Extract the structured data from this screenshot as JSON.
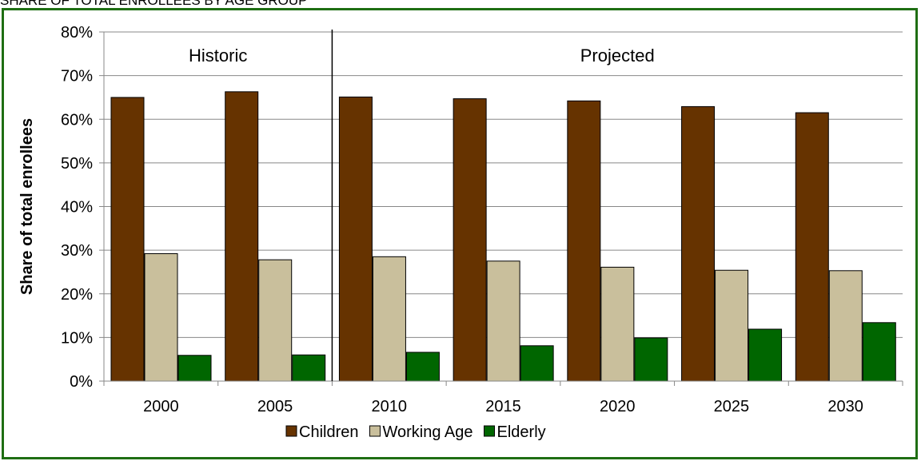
{
  "header": {
    "caption": "SHARE OF TOTAL ENROLLEES BY AGE GROUP"
  },
  "chart_data": {
    "type": "bar",
    "title": "",
    "xlabel": "",
    "ylabel": "Share of total enrollees",
    "ylim": [
      0,
      80
    ],
    "yticks": [
      0,
      10,
      20,
      30,
      40,
      50,
      60,
      70,
      80
    ],
    "ytick_format": "%",
    "grid": true,
    "legend_position": "bottom",
    "categories": [
      "2000",
      "2005",
      "2010",
      "2015",
      "2020",
      "2025",
      "2030"
    ],
    "series": [
      {
        "name": "Children",
        "color": "#663300",
        "values": [
          65,
          66.3,
          65.1,
          64.7,
          64.2,
          62.9,
          61.5
        ]
      },
      {
        "name": "Working Age",
        "color": "#c9bf9c",
        "values": [
          29.2,
          27.8,
          28.5,
          27.5,
          26.1,
          25.4,
          25.3
        ]
      },
      {
        "name": "Elderly",
        "color": "#006600",
        "values": [
          5.9,
          6.0,
          6.6,
          8.1,
          9.9,
          11.9,
          13.4
        ]
      }
    ],
    "annotations": [
      {
        "text": "Historic",
        "region": "2000-2005"
      },
      {
        "text": "Projected",
        "region": "2010-2030"
      }
    ],
    "divider_between": [
      "2005",
      "2010"
    ]
  }
}
